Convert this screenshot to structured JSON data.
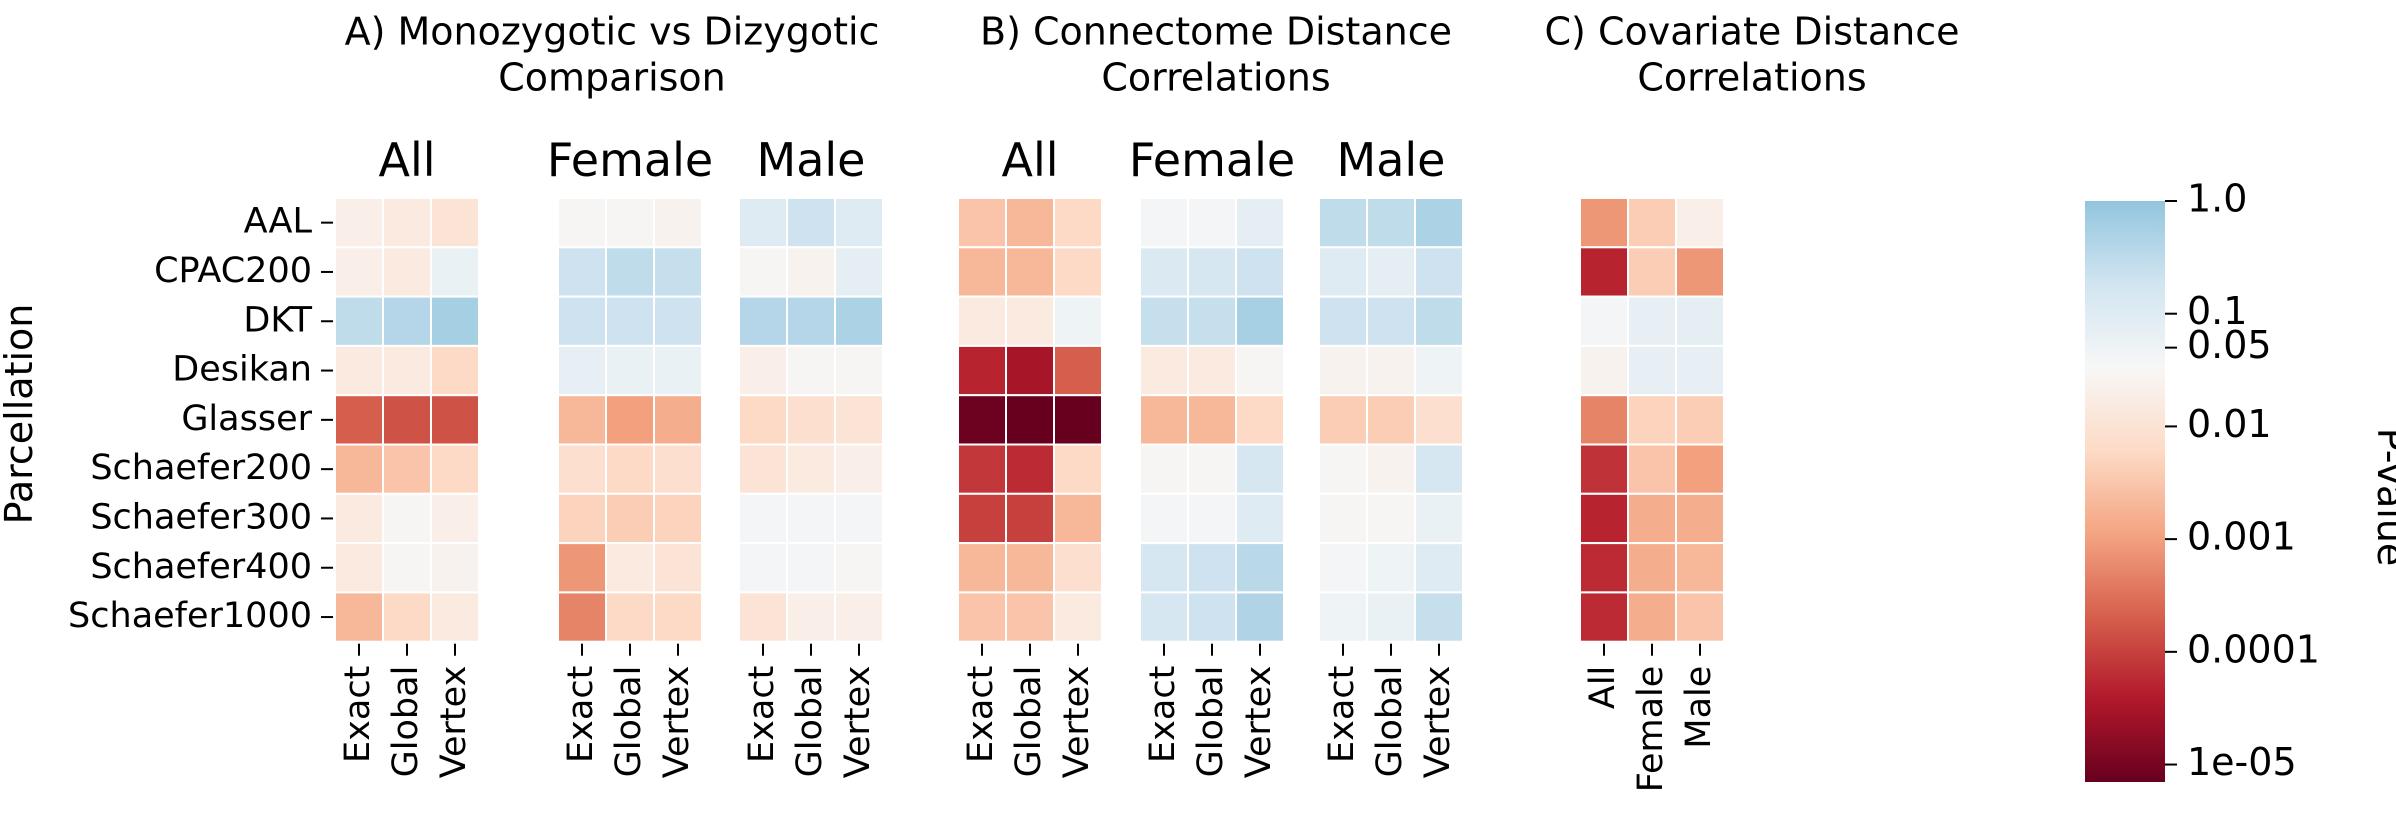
{
  "chart_data": {
    "type": "heatmap",
    "ylabel": "Parcellation",
    "rows": [
      "AAL",
      "CPAC200",
      "DKT",
      "Desikan",
      "Glasser",
      "Schaefer200",
      "Schaefer300",
      "Schaefer400",
      "Schaefer1000"
    ],
    "colorbar": {
      "label": "P-value",
      "scale": "log",
      "range": [
        7e-06,
        1.0
      ],
      "tick_values": [
        1.0,
        0.1,
        0.05,
        0.01,
        0.001,
        0.0001,
        1e-05
      ],
      "tick_labels": [
        "1.0",
        "0.1",
        "0.05",
        "0.01",
        "0.001",
        "0.0001",
        "1e-05"
      ],
      "colors": [
        "#67001f",
        "#b2182b",
        "#d6604d",
        "#f4a582",
        "#fddbc7",
        "#f7f7f7",
        "#d1e5f0",
        "#92c5de"
      ]
    },
    "panels": [
      {
        "title": "A) Monozygotic vs Dizygotic\nComparison",
        "groups": [
          {
            "name": "All",
            "columns": [
              "Exact",
              "Global",
              "Vertex"
            ],
            "values": [
              [
                0.02,
                0.015,
                0.01
              ],
              [
                0.02,
                0.015,
                0.06
              ],
              [
                0.3,
                0.4,
                0.6
              ],
              [
                0.015,
                0.015,
                0.006
              ],
              [
                0.0002,
                0.00015,
                0.00015
              ],
              [
                0.002,
                0.003,
                0.006
              ],
              [
                0.015,
                0.03,
                0.02
              ],
              [
                0.015,
                0.03,
                0.025
              ],
              [
                0.002,
                0.006,
                0.015
              ]
            ]
          },
          {
            "name": "Female",
            "columns": [
              "Exact",
              "Global",
              "Vertex"
            ],
            "values": [
              [
                0.03,
                0.03,
                0.025
              ],
              [
                0.2,
                0.3,
                0.25
              ],
              [
                0.2,
                0.2,
                0.2
              ],
              [
                0.07,
                0.06,
                0.06
              ],
              [
                0.002,
                0.001,
                0.0015
              ],
              [
                0.008,
                0.006,
                0.008
              ],
              [
                0.005,
                0.004,
                0.005
              ],
              [
                0.0008,
                0.015,
                0.01
              ],
              [
                0.0005,
                0.006,
                0.006
              ]
            ]
          },
          {
            "name": "Male",
            "columns": [
              "Exact",
              "Global",
              "Vertex"
            ],
            "values": [
              [
                0.1,
                0.2,
                0.1
              ],
              [
                0.03,
                0.025,
                0.08
              ],
              [
                0.4,
                0.4,
                0.5
              ],
              [
                0.02,
                0.03,
                0.03
              ],
              [
                0.006,
                0.008,
                0.01
              ],
              [
                0.01,
                0.015,
                0.02
              ],
              [
                0.04,
                0.04,
                0.04
              ],
              [
                0.04,
                0.04,
                0.03
              ],
              [
                0.01,
                0.02,
                0.02
              ]
            ]
          }
        ]
      },
      {
        "title": "B) Connectome Distance\nCorrelations",
        "groups": [
          {
            "name": "All",
            "columns": [
              "Exact",
              "Global",
              "Vertex"
            ],
            "values": [
              [
                0.003,
                0.002,
                0.006
              ],
              [
                0.002,
                0.002,
                0.006
              ],
              [
                0.015,
                0.015,
                0.05
              ],
              [
                5e-05,
                3e-05,
                0.0002
              ],
              [
                8e-06,
                7e-06,
                7e-06
              ],
              [
                8e-05,
                6e-05,
                0.006
              ],
              [
                0.0001,
                0.0001,
                0.002
              ],
              [
                0.002,
                0.002,
                0.008
              ],
              [
                0.003,
                0.003,
                0.015
              ]
            ]
          },
          {
            "name": "Female",
            "columns": [
              "Exact",
              "Global",
              "Vertex"
            ],
            "values": [
              [
                0.04,
                0.04,
                0.08
              ],
              [
                0.12,
                0.15,
                0.2
              ],
              [
                0.25,
                0.25,
                0.55
              ],
              [
                0.015,
                0.015,
                0.03
              ],
              [
                0.002,
                0.002,
                0.006
              ],
              [
                0.03,
                0.03,
                0.15
              ],
              [
                0.04,
                0.04,
                0.1
              ],
              [
                0.15,
                0.2,
                0.35
              ],
              [
                0.15,
                0.2,
                0.45
              ]
            ]
          },
          {
            "name": "Male",
            "columns": [
              "Exact",
              "Global",
              "Vertex"
            ],
            "values": [
              [
                0.3,
                0.3,
                0.5
              ],
              [
                0.1,
                0.08,
                0.2
              ],
              [
                0.2,
                0.2,
                0.3
              ],
              [
                0.025,
                0.025,
                0.05
              ],
              [
                0.004,
                0.004,
                0.008
              ],
              [
                0.03,
                0.025,
                0.15
              ],
              [
                0.03,
                0.03,
                0.06
              ],
              [
                0.04,
                0.05,
                0.1
              ],
              [
                0.05,
                0.06,
                0.25
              ]
            ]
          }
        ]
      },
      {
        "title": "C) Covariate Distance\nCorrelations",
        "groups": [
          {
            "name": "",
            "columns": [
              "All",
              "Female",
              "Male"
            ],
            "values": [
              [
                0.0008,
                0.004,
                0.02
              ],
              [
                5e-05,
                0.004,
                0.0008
              ],
              [
                0.04,
                0.07,
                0.08
              ],
              [
                0.025,
                0.07,
                0.07
              ],
              [
                0.0005,
                0.005,
                0.004
              ],
              [
                7e-05,
                0.003,
                0.001
              ],
              [
                5e-05,
                0.0015,
                0.0015
              ],
              [
                6e-05,
                0.0015,
                0.002
              ],
              [
                6e-05,
                0.0015,
                0.003
              ]
            ]
          }
        ]
      }
    ]
  }
}
